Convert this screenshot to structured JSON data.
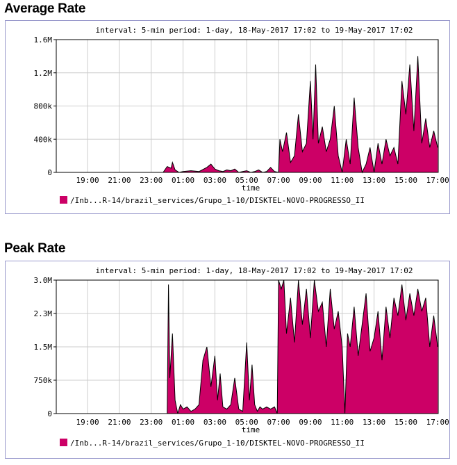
{
  "chart_data": [
    {
      "type": "area",
      "title": "Average Rate",
      "subtitle": "interval: 5-min  period: 1-day, 18-May-2017 17:02 to 19-May-2017 17:02",
      "xlabel": "time",
      "ylabel": "",
      "x_ticks": [
        "19:00",
        "21:00",
        "23:00",
        "01:00",
        "03:00",
        "05:00",
        "07:00",
        "09:00",
        "11:00",
        "13:00",
        "15:00",
        "17:00"
      ],
      "y_ticks": [
        "0",
        "400k",
        "800k",
        "1.2M",
        "1.6M"
      ],
      "ylim": [
        0,
        1600000
      ],
      "series": [
        {
          "name": "/Inb...R-14/brazil_services/Grupo_1-10/DISKTEL-NOVO-PROGRESSO_II",
          "color": "#cc0066",
          "x": [
            "23:45",
            "00:00",
            "00:15",
            "00:20",
            "00:30",
            "00:45",
            "01:00",
            "01:30",
            "02:00",
            "02:30",
            "02:45",
            "03:00",
            "03:15",
            "03:30",
            "03:45",
            "04:00",
            "04:15",
            "04:30",
            "04:45",
            "05:00",
            "05:15",
            "05:30",
            "05:45",
            "06:00",
            "06:15",
            "06:30",
            "06:45",
            "07:00",
            "07:05",
            "07:15",
            "07:30",
            "07:45",
            "08:00",
            "08:15",
            "08:30",
            "08:45",
            "09:00",
            "09:10",
            "09:20",
            "09:30",
            "09:45",
            "10:00",
            "10:15",
            "10:30",
            "10:45",
            "11:00",
            "11:15",
            "11:30",
            "11:45",
            "12:00",
            "12:15",
            "12:30",
            "12:45",
            "13:00",
            "13:15",
            "13:30",
            "13:45",
            "14:00",
            "14:15",
            "14:30",
            "14:45",
            "15:00",
            "15:15",
            "15:30",
            "15:45",
            "16:00",
            "16:15",
            "16:30",
            "16:45",
            "17:00"
          ],
          "values": [
            0,
            70000,
            50000,
            120000,
            30000,
            0,
            10000,
            20000,
            10000,
            60000,
            100000,
            40000,
            20000,
            10000,
            30000,
            20000,
            40000,
            0,
            10000,
            20000,
            0,
            10000,
            30000,
            0,
            10000,
            60000,
            10000,
            0,
            400000,
            250000,
            480000,
            120000,
            200000,
            700000,
            250000,
            350000,
            1100000,
            400000,
            1300000,
            350000,
            550000,
            250000,
            400000,
            800000,
            200000,
            0,
            400000,
            100000,
            900000,
            300000,
            0,
            100000,
            300000,
            0,
            350000,
            100000,
            400000,
            200000,
            300000,
            100000,
            1100000,
            700000,
            1300000,
            500000,
            1400000,
            350000,
            650000,
            300000,
            500000,
            300000
          ]
        }
      ]
    },
    {
      "type": "area",
      "title": "Peak Rate",
      "subtitle": "interval: 5-min  period: 1-day, 18-May-2017 17:02 to 19-May-2017 17:02",
      "xlabel": "time",
      "ylabel": "",
      "x_ticks": [
        "19:00",
        "21:00",
        "23:00",
        "01:00",
        "03:00",
        "05:00",
        "07:00",
        "09:00",
        "11:00",
        "13:00",
        "15:00",
        "17:00"
      ],
      "y_ticks": [
        "0",
        "750k",
        "1.5M",
        "2.3M",
        "3.0M"
      ],
      "ylim": [
        0,
        3000000
      ],
      "series": [
        {
          "name": "/Inb...R-14/brazil_services/Grupo_1-10/DISKTEL-NOVO-PROGRESSO_II",
          "color": "#cc0066",
          "x": [
            "00:00",
            "00:05",
            "00:10",
            "00:20",
            "00:30",
            "00:40",
            "00:50",
            "01:00",
            "01:15",
            "01:30",
            "01:45",
            "02:00",
            "02:15",
            "02:30",
            "02:45",
            "03:00",
            "03:10",
            "03:20",
            "03:30",
            "03:45",
            "04:00",
            "04:15",
            "04:30",
            "04:45",
            "05:00",
            "05:10",
            "05:20",
            "05:30",
            "05:40",
            "05:50",
            "06:00",
            "06:15",
            "06:30",
            "06:45",
            "06:55",
            "07:00",
            "07:10",
            "07:20",
            "07:30",
            "07:45",
            "08:00",
            "08:15",
            "08:30",
            "08:45",
            "09:00",
            "09:15",
            "09:30",
            "09:45",
            "10:00",
            "10:15",
            "10:30",
            "10:45",
            "11:00",
            "11:10",
            "11:20",
            "11:30",
            "11:45",
            "12:00",
            "12:15",
            "12:30",
            "12:45",
            "13:00",
            "13:15",
            "13:30",
            "13:45",
            "14:00",
            "14:15",
            "14:30",
            "14:45",
            "15:00",
            "15:15",
            "15:30",
            "15:45",
            "16:00",
            "16:15",
            "16:30",
            "16:45",
            "17:00"
          ],
          "values": [
            0,
            2900000,
            800000,
            1800000,
            300000,
            0,
            200000,
            100000,
            150000,
            50000,
            100000,
            200000,
            1200000,
            1500000,
            600000,
            1300000,
            300000,
            900000,
            150000,
            100000,
            200000,
            800000,
            100000,
            50000,
            1600000,
            300000,
            1100000,
            200000,
            50000,
            150000,
            100000,
            150000,
            100000,
            150000,
            0,
            3000000,
            2800000,
            3000000,
            1800000,
            2600000,
            1600000,
            3000000,
            2000000,
            2800000,
            1700000,
            3000000,
            2300000,
            2500000,
            1500000,
            2800000,
            1900000,
            2300000,
            1500000,
            0,
            1800000,
            1500000,
            2400000,
            1300000,
            2000000,
            2700000,
            1400000,
            1700000,
            2300000,
            1200000,
            2400000,
            1700000,
            2600000,
            2200000,
            2900000,
            2100000,
            2700000,
            2200000,
            2800000,
            2300000,
            2600000,
            1500000,
            2200000,
            1500000
          ]
        }
      ]
    }
  ]
}
